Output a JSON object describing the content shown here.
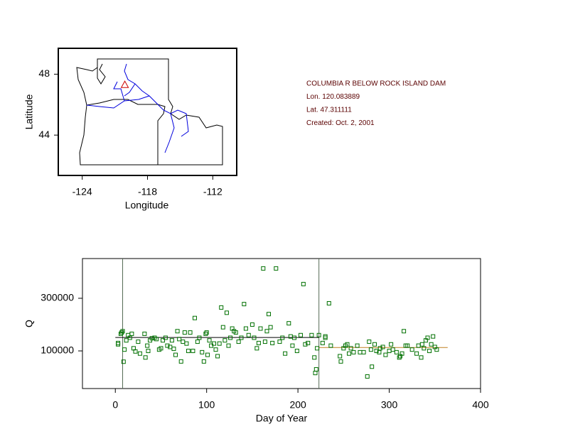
{
  "chart_data": [
    {
      "type": "map",
      "x_label": "Longitude",
      "y_label": "Latitude",
      "xlim": [
        -126.2,
        -109.8
      ],
      "ylim": [
        41.35,
        49.7
      ],
      "xticks": [
        -124,
        -118,
        -112
      ],
      "yticks": [
        44,
        48
      ],
      "station": {
        "x": [
          -120.083889
        ],
        "y": [
          47.311111
        ],
        "color": "#cc0000"
      },
      "annotations": [
        "COLUMBIA R BELOW ROCK ISLAND DAM",
        "Lon. 120.083889",
        "Lat. 47.311111",
        "Created:   Oct. 2, 2001"
      ]
    },
    {
      "type": "scatter",
      "x_label": "Day of Year",
      "y_label": "Q",
      "xlim": [
        -36,
        400
      ],
      "ylim": [
        -43000,
        451000
      ],
      "xticks": [
        0,
        100,
        200,
        300,
        400
      ],
      "yticks": [
        100000,
        300000
      ],
      "color": "#007000",
      "reference_lines": [
        8,
        223
      ],
      "trend_segments": [
        {
          "color": "#000000",
          "x": [
            0,
            223
          ],
          "y": [
            151000,
            151000
          ]
        },
        {
          "color": "#c08020",
          "x": [
            223,
            364
          ],
          "y": [
            113000,
            113000
          ]
        }
      ],
      "x": [
        3,
        3,
        6,
        7,
        8,
        9,
        10,
        12,
        14,
        16,
        18,
        20,
        22,
        25,
        27,
        32,
        33,
        35,
        36,
        38,
        40,
        43,
        45,
        48,
        50,
        52,
        55,
        57,
        60,
        62,
        64,
        66,
        68,
        70,
        72,
        74,
        76,
        78,
        80,
        82,
        85,
        87,
        90,
        92,
        95,
        97,
        99,
        100,
        101,
        103,
        105,
        108,
        110,
        112,
        114,
        116,
        118,
        120,
        122,
        124,
        126,
        128,
        130,
        132,
        135,
        138,
        141,
        143,
        146,
        150,
        152,
        155,
        157,
        159,
        162,
        164,
        166,
        168,
        170,
        172,
        176,
        180,
        183,
        186,
        190,
        192,
        194,
        196,
        199,
        203,
        206,
        208,
        211,
        215,
        218,
        219,
        220,
        221,
        223,
        227,
        230,
        230,
        234,
        236,
        246,
        247,
        250,
        252,
        254,
        256,
        258,
        261,
        265,
        268,
        272,
        276,
        278,
        280,
        281,
        284,
        286,
        289,
        290,
        293,
        296,
        300,
        302,
        304,
        308,
        311,
        312,
        314,
        316,
        318,
        320,
        325,
        330,
        332,
        335,
        336,
        338,
        340,
        342,
        344,
        346,
        348,
        350,
        352
      ],
      "y": [
        125000,
        130000,
        165000,
        170000,
        175000,
        59000,
        105000,
        140000,
        160000,
        150000,
        165000,
        110000,
        98000,
        135000,
        90000,
        165000,
        75000,
        120000,
        100000,
        140000,
        148000,
        150000,
        145000,
        105000,
        110000,
        140000,
        150000,
        120000,
        115000,
        140000,
        108000,
        85000,
        175000,
        145000,
        60000,
        135000,
        170000,
        128000,
        100000,
        170000,
        100000,
        225000,
        135000,
        150000,
        95000,
        60000,
        165000,
        170000,
        85000,
        140000,
        120000,
        128000,
        105000,
        80000,
        128000,
        265000,
        190000,
        140000,
        245000,
        120000,
        150000,
        185000,
        175000,
        170000,
        135000,
        150000,
        278000,
        185000,
        160000,
        200000,
        150000,
        110000,
        130000,
        185000,
        413500,
        135000,
        175000,
        240000,
        190000,
        130000,
        413500,
        135000,
        150000,
        90000,
        205000,
        155000,
        120000,
        150000,
        100000,
        160000,
        354000,
        125000,
        130000,
        160000,
        75000,
        16000,
        30000,
        110000,
        160000,
        130000,
        150000,
        155000,
        281000,
        120000,
        80000,
        60000,
        110000,
        120000,
        125000,
        90000,
        110000,
        95000,
        120000,
        95000,
        95000,
        3000,
        135000,
        105000,
        40000,
        125000,
        100000,
        95000,
        110000,
        115000,
        85000,
        100000,
        125000,
        105000,
        95000,
        75000,
        80000,
        90000,
        175000,
        120000,
        120000,
        105000,
        90000,
        120000,
        75000,
        125000,
        110000,
        140000,
        150000,
        100000,
        125000,
        155000,
        115000,
        105000
      ]
    }
  ]
}
